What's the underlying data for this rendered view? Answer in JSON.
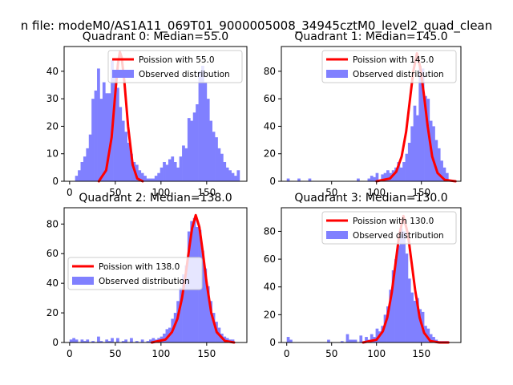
{
  "figure": {
    "suptitle": "n file: modeM0/AS1A11_069T01_9000005008_34945cztM0_level2_quad_clean"
  },
  "colors": {
    "histogram": "#8080ff",
    "poisson": "#ff0000",
    "axis": "#000000",
    "background": "#ffffff"
  },
  "chart_data": [
    {
      "type": "bar",
      "title": "Quadrant 0: Median=55.0",
      "xlim": [
        -6,
        194
      ],
      "ylim": [
        0,
        49
      ],
      "xticks": [
        0,
        50,
        100,
        150
      ],
      "yticks": [
        0,
        10,
        20,
        30,
        40
      ],
      "bin_width": 3.3,
      "legend": {
        "placement": "top-right",
        "line_label": "Poission with 55.0",
        "hist_label": "Observed distribution"
      },
      "poisson_mean": 55.0,
      "poisson_peak": 47,
      "poisson_x": [
        32,
        40,
        46,
        50,
        53,
        55,
        57,
        60,
        64,
        69,
        74,
        80
      ],
      "poisson_y": [
        0,
        4,
        16,
        32,
        43,
        47,
        45,
        36,
        20,
        6,
        1,
        0
      ],
      "bins_x": [
        6,
        9,
        12,
        15,
        18,
        21,
        24,
        27,
        30,
        33,
        36,
        39,
        42,
        45,
        48,
        51,
        54,
        57,
        60,
        63,
        66,
        69,
        72,
        75,
        78,
        81,
        84,
        87,
        90,
        93,
        96,
        99,
        102,
        105,
        108,
        111,
        114,
        117,
        120,
        123,
        126,
        129,
        132,
        135,
        138,
        141,
        144,
        147,
        150,
        153,
        156,
        159,
        162,
        165,
        168,
        171,
        174,
        177,
        180,
        183
      ],
      "bins_y": [
        2,
        4,
        7,
        9,
        12,
        17,
        30,
        33,
        41,
        30,
        36,
        32,
        32,
        44,
        38,
        34,
        27,
        22,
        18,
        14,
        10,
        7,
        6,
        4,
        3,
        2,
        1,
        1,
        1,
        2,
        3,
        5,
        7,
        6,
        8,
        9,
        7,
        5,
        9,
        13,
        12,
        23,
        22,
        25,
        28,
        40,
        42,
        36,
        30,
        22,
        18,
        16,
        12,
        10,
        7,
        5,
        4,
        3,
        2,
        4
      ]
    },
    {
      "type": "bar",
      "title": "Quadrant 1: Median=145.0",
      "xlim": [
        -6,
        194
      ],
      "ylim": [
        0,
        98
      ],
      "xticks": [
        50,
        100,
        150
      ],
      "yticks": [
        0,
        20,
        40,
        60,
        80
      ],
      "bin_width": 3.3,
      "legend": {
        "placement": "top-right",
        "line_label": "Poission with 145.0",
        "hist_label": "Observed distribution"
      },
      "poisson_mean": 145.0,
      "poisson_peak": 93,
      "poisson_x": [
        100,
        115,
        122,
        128,
        133,
        137,
        141,
        145,
        149,
        153,
        157,
        162,
        168,
        176,
        188
      ],
      "poisson_y": [
        0,
        2,
        7,
        18,
        36,
        58,
        80,
        93,
        82,
        62,
        40,
        18,
        6,
        1,
        0
      ],
      "bins_x": [
        0,
        3,
        6,
        9,
        12,
        15,
        18,
        21,
        24,
        27,
        30,
        33,
        36,
        39,
        42,
        45,
        48,
        51,
        54,
        57,
        60,
        63,
        66,
        69,
        72,
        75,
        78,
        81,
        84,
        87,
        90,
        93,
        96,
        99,
        102,
        105,
        108,
        111,
        114,
        117,
        120,
        123,
        126,
        129,
        132,
        135,
        138,
        141,
        144,
        147,
        150,
        153,
        156,
        159,
        162,
        165,
        168,
        171,
        174,
        177
      ],
      "bins_y": [
        2,
        0,
        0,
        0,
        2,
        0,
        0,
        0,
        2,
        0,
        0,
        0,
        0,
        0,
        0,
        0,
        0,
        0,
        0,
        0,
        0,
        0,
        0,
        0,
        0,
        0,
        2,
        0,
        0,
        0,
        2,
        4,
        3,
        6,
        1,
        5,
        6,
        8,
        6,
        8,
        10,
        14,
        10,
        14,
        20,
        28,
        40,
        55,
        48,
        84,
        82,
        62,
        60,
        44,
        40,
        30,
        24,
        15,
        10,
        6
      ]
    },
    {
      "type": "bar",
      "title": "Quadrant 2: Median=138.0",
      "xlim": [
        -6,
        194
      ],
      "ylim": [
        0,
        91
      ],
      "xticks": [
        0,
        50,
        100,
        150
      ],
      "yticks": [
        0,
        20,
        40,
        60,
        80
      ],
      "bin_width": 3.3,
      "legend": {
        "placement": "center-left",
        "line_label": "Poission with 138.0",
        "hist_label": "Observed distribution"
      },
      "poisson_mean": 138.0,
      "poisson_peak": 86,
      "poisson_x": [
        90,
        105,
        112,
        118,
        123,
        127,
        131,
        134,
        138,
        142,
        146,
        150,
        155,
        161,
        170,
        180
      ],
      "poisson_y": [
        0,
        2,
        7,
        16,
        30,
        46,
        64,
        77,
        86,
        78,
        60,
        40,
        20,
        7,
        1,
        0
      ],
      "bins_x": [
        0,
        3,
        6,
        9,
        12,
        15,
        18,
        21,
        24,
        27,
        30,
        33,
        36,
        39,
        42,
        45,
        48,
        51,
        54,
        57,
        60,
        63,
        66,
        69,
        72,
        75,
        78,
        81,
        84,
        87,
        90,
        93,
        96,
        99,
        102,
        105,
        108,
        111,
        114,
        117,
        120,
        123,
        126,
        129,
        132,
        135,
        138,
        141,
        144,
        147,
        150,
        153,
        156,
        159,
        162,
        165,
        168,
        171,
        174,
        177
      ],
      "bins_y": [
        2,
        3,
        2,
        0,
        2,
        1,
        2,
        0,
        1,
        0,
        4,
        1,
        0,
        2,
        1,
        3,
        0,
        3,
        0,
        1,
        2,
        0,
        3,
        0,
        1,
        0,
        2,
        0,
        1,
        2,
        3,
        2,
        3,
        4,
        6,
        9,
        10,
        16,
        20,
        28,
        37,
        46,
        52,
        75,
        82,
        84,
        78,
        76,
        62,
        50,
        38,
        28,
        20,
        14,
        10,
        6,
        4,
        3,
        2,
        2
      ]
    },
    {
      "type": "bar",
      "title": "Quadrant 3: Median=130.0",
      "xlim": [
        -6,
        194
      ],
      "ylim": [
        0,
        97
      ],
      "xticks": [
        0,
        50,
        100,
        150
      ],
      "yticks": [
        0,
        20,
        40,
        60,
        80
      ],
      "bin_width": 3.3,
      "legend": {
        "placement": "top-right",
        "line_label": "Poission with 130.0",
        "hist_label": "Observed distribution"
      },
      "poisson_mean": 130.0,
      "poisson_peak": 91,
      "poisson_x": [
        85,
        100,
        107,
        112,
        117,
        121,
        125,
        130,
        135,
        139,
        143,
        148,
        153,
        160,
        170,
        180
      ],
      "poisson_y": [
        0,
        2,
        8,
        18,
        36,
        56,
        76,
        91,
        78,
        58,
        38,
        18,
        7,
        1,
        0,
        0
      ],
      "bins_x": [
        0,
        3,
        6,
        9,
        12,
        15,
        18,
        21,
        24,
        27,
        30,
        33,
        36,
        39,
        42,
        45,
        48,
        51,
        54,
        57,
        60,
        63,
        66,
        69,
        72,
        75,
        78,
        81,
        84,
        87,
        90,
        93,
        96,
        99,
        102,
        105,
        108,
        111,
        114,
        117,
        120,
        123,
        126,
        129,
        132,
        135,
        138,
        141,
        144,
        147,
        150,
        153,
        156,
        159,
        162,
        165,
        168,
        171,
        174,
        177
      ],
      "bins_y": [
        4,
        2,
        0,
        0,
        0,
        0,
        0,
        0,
        0,
        0,
        0,
        0,
        0,
        0,
        0,
        2,
        0,
        0,
        0,
        0,
        1,
        0,
        6,
        2,
        2,
        2,
        0,
        5,
        0,
        4,
        2,
        6,
        4,
        10,
        8,
        12,
        20,
        26,
        38,
        52,
        60,
        70,
        82,
        80,
        64,
        46,
        36,
        30,
        32,
        24,
        22,
        12,
        10,
        6,
        4,
        2,
        1,
        1,
        1,
        1
      ]
    }
  ]
}
